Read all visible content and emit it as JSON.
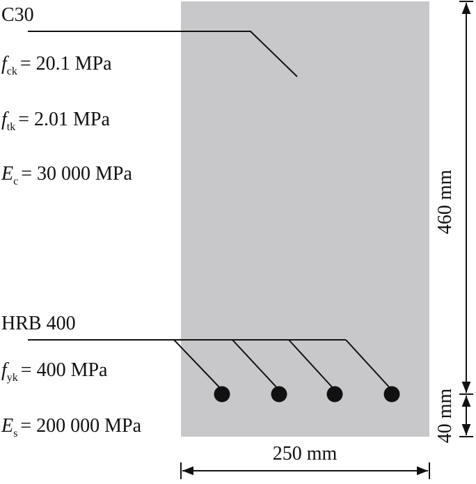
{
  "concrete": {
    "grade": "C30",
    "properties": [
      {
        "symbol": "f",
        "subscript": "ck",
        "value": "= 20.1 MPa"
      },
      {
        "symbol": "f",
        "subscript": "tk",
        "value": "= 2.01 MPa"
      },
      {
        "symbol": "E",
        "subscript": "c",
        "value": "= 30 000 MPa"
      }
    ]
  },
  "steel": {
    "grade": "HRB 400",
    "properties": [
      {
        "symbol": "f",
        "subscript": "yk",
        "value": "= 400 MPa"
      },
      {
        "symbol": "E",
        "subscript": "s",
        "value": "= 200 000 MPa"
      }
    ]
  },
  "dimensions": {
    "height": "460 mm",
    "cover": "40 mm",
    "width": "250 mm"
  }
}
